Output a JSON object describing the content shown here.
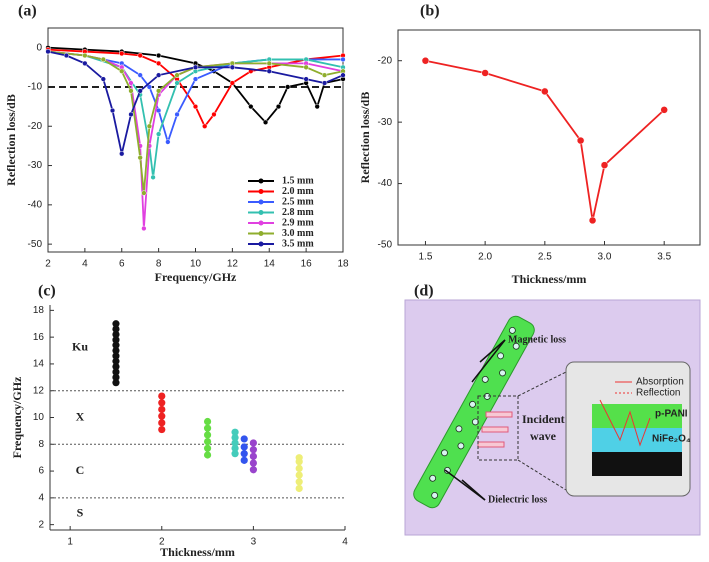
{
  "chart_data": [
    {
      "type": "line",
      "panel_label": "(a)",
      "xlabel": "Frequency/GHz",
      "ylabel": "Reflection loss/dB",
      "xlim": [
        2,
        18
      ],
      "ylim": [
        -52,
        5
      ],
      "xticks": [
        2,
        4,
        6,
        8,
        10,
        12,
        14,
        16,
        18
      ],
      "yticks": [
        -50,
        -40,
        -30,
        -20,
        -10,
        0
      ],
      "hline": -10,
      "legend": "lower right",
      "box": true,
      "markers": true,
      "series": [
        {
          "name": "1.5 mm",
          "color": "#000000",
          "x": [
            2,
            4,
            6,
            8,
            10,
            11,
            12,
            13,
            13.8,
            14.5,
            15,
            16,
            16.6,
            17,
            18
          ],
          "values": [
            0,
            -0.5,
            -1,
            -2,
            -4,
            -6,
            -9,
            -15,
            -19,
            -15,
            -10,
            -9,
            -15,
            -9,
            -8
          ]
        },
        {
          "name": "2.0 mm",
          "color": "#ff0000",
          "x": [
            2,
            4,
            6,
            7,
            8,
            9,
            10,
            10.5,
            11,
            12,
            13,
            14,
            16,
            18
          ],
          "values": [
            -0.5,
            -1,
            -1.5,
            -2,
            -4,
            -8,
            -15,
            -20,
            -17,
            -9,
            -6,
            -5,
            -3,
            -2
          ]
        },
        {
          "name": "2.5 mm",
          "color": "#3a5bff",
          "x": [
            2,
            4,
            6,
            7,
            7.5,
            8,
            8.5,
            9,
            10,
            12,
            14,
            16,
            18
          ],
          "values": [
            -1,
            -2,
            -4,
            -7,
            -10,
            -16,
            -24,
            -17,
            -8,
            -4,
            -3,
            -3,
            -3
          ]
        },
        {
          "name": "2.8 mm",
          "color": "#33c0b0",
          "x": [
            2,
            4,
            6,
            7,
            7.5,
            7.7,
            8,
            9,
            10,
            12,
            14,
            16,
            18
          ],
          "values": [
            -1,
            -2,
            -5,
            -12,
            -25,
            -33,
            -22,
            -9,
            -6,
            -4,
            -3,
            -3,
            -5
          ]
        },
        {
          "name": "2.9 mm",
          "color": "#e040e0",
          "x": [
            2,
            4,
            5,
            6,
            6.5,
            7,
            7.2,
            7.5,
            8,
            9,
            10,
            12,
            14,
            16,
            18
          ],
          "values": [
            -1,
            -2,
            -3,
            -5,
            -9,
            -25,
            -46,
            -25,
            -12,
            -7,
            -5,
            -4,
            -4,
            -4,
            -6
          ]
        },
        {
          "name": "3.0 mm",
          "color": "#8fae2e",
          "x": [
            2,
            4,
            5,
            6,
            6.5,
            7,
            7.2,
            7.5,
            8,
            9,
            10,
            12,
            14,
            16,
            17,
            18
          ],
          "values": [
            -1,
            -2,
            -3,
            -6,
            -11,
            -28,
            -37,
            -20,
            -11,
            -7,
            -5,
            -4,
            -4,
            -5,
            -7,
            -6
          ]
        },
        {
          "name": "3.5 mm",
          "color": "#1a1aa0",
          "x": [
            2,
            3,
            4,
            5,
            5.5,
            6,
            6.5,
            7,
            8,
            10,
            12,
            14,
            16,
            17,
            18
          ],
          "values": [
            -1,
            -2,
            -4,
            -8,
            -16,
            -27,
            -17,
            -11,
            -7,
            -5,
            -5,
            -6,
            -8,
            -9,
            -7
          ]
        }
      ]
    },
    {
      "type": "line",
      "panel_label": "(b)",
      "xlabel": "Thickness/mm",
      "ylabel": "Reflection loss/dB",
      "xlim": [
        1.27,
        3.8
      ],
      "ylim": [
        -50,
        -15
      ],
      "xticks": [
        1.5,
        {
          "value": 2,
          "label": "2.0"
        },
        2.5,
        {
          "value": 3,
          "label": "3.0"
        },
        3.5
      ],
      "yticks": [
        -50,
        -40,
        -30,
        -20
      ],
      "box": true,
      "markers": true,
      "series": [
        {
          "color": "#ee2222",
          "x": [
            1.5,
            2,
            2.5,
            2.8,
            2.9,
            3,
            3.5
          ],
          "values": [
            -20,
            -22,
            -25,
            -33,
            -46,
            -37,
            -28
          ]
        }
      ]
    },
    {
      "type": "scatter",
      "panel_label": "(c)",
      "xlabel": "Thickness/mm",
      "ylabel": "Frequency/GHz",
      "xlim": [
        0.78,
        4
      ],
      "ylim": [
        1.6,
        18.4
      ],
      "xticks": [
        1,
        2,
        3,
        4
      ],
      "yticks": [
        2,
        4,
        6,
        8,
        10,
        12,
        14,
        16,
        18
      ],
      "box": false,
      "band_lines": [
        4,
        8,
        12
      ],
      "band_labels": [
        "S",
        "C",
        "X",
        "Ku"
      ],
      "series": [
        {
          "color": "#111111",
          "x": 1.5,
          "values": [
            12.6,
            13.0,
            13.4,
            13.8,
            14.2,
            14.6,
            15.0,
            15.4,
            15.8,
            16.2,
            16.6,
            17.0
          ]
        },
        {
          "color": "#ee2222",
          "x": 2,
          "values": [
            9.1,
            9.6,
            10.1,
            10.6,
            11.1,
            11.6
          ]
        },
        {
          "color": "#66dd44",
          "x": 2.5,
          "values": [
            7.2,
            7.7,
            8.2,
            8.7,
            9.2,
            9.7
          ]
        },
        {
          "color": "#44ccbb",
          "x": 2.8,
          "values": [
            7.3,
            7.7,
            8.1,
            8.5,
            8.9
          ]
        },
        {
          "color": "#3355ee",
          "x": 2.9,
          "values": [
            6.8,
            7.3,
            7.8,
            8.4
          ]
        },
        {
          "color": "#9944cc",
          "x": 3,
          "values": [
            6.1,
            6.6,
            7.1,
            7.6,
            8.1
          ]
        },
        {
          "color": "#eeee77",
          "x": 3.5,
          "values": [
            4.7,
            5.2,
            5.7,
            6.2,
            6.7,
            7.0
          ]
        }
      ]
    }
  ],
  "diagram": {
    "label": "(d)",
    "magnetic_loss": "Magnetic loss",
    "incident": [
      "Incident",
      "wave"
    ],
    "dielectric_loss": "Dielectric loss",
    "absorption": "Absorption",
    "reflection": "Reflection",
    "layers": [
      "p-PANI",
      "NiFe₂O₄"
    ]
  }
}
